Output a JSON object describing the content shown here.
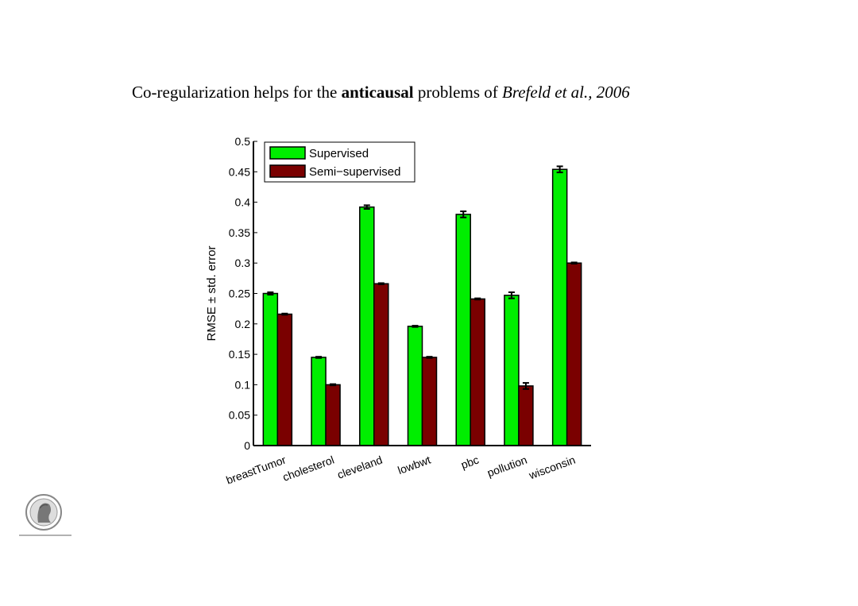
{
  "heading": {
    "part1": "Co-regularization helps for the ",
    "bold": "anticausal",
    "part2": " problems of ",
    "italic": "Brefeld et al., 2006"
  },
  "chart_data": {
    "type": "bar",
    "title": "",
    "xlabel": "",
    "ylabel": "RMSE ± std. error",
    "ylim": [
      0,
      0.5
    ],
    "yticks": [
      "0",
      "0.05",
      "0.1",
      "0.15",
      "0.2",
      "0.25",
      "0.3",
      "0.35",
      "0.4",
      "0.45",
      "0.5"
    ],
    "categories": [
      "breastTumor",
      "cholesterol",
      "cleveland",
      "lowbwt",
      "pbc",
      "pollution",
      "wisconsin"
    ],
    "series": [
      {
        "name": "Supervised",
        "color": "#00ee00",
        "values": [
          0.25,
          0.145,
          0.392,
          0.196,
          0.38,
          0.247,
          0.454
        ],
        "errors": [
          0.002,
          0.001,
          0.003,
          0.001,
          0.005,
          0.005,
          0.005
        ]
      },
      {
        "name": "Semi−supervised",
        "color": "#7a0000",
        "values": [
          0.216,
          0.1,
          0.266,
          0.145,
          0.241,
          0.098,
          0.3
        ],
        "errors": [
          0.001,
          0.001,
          0.001,
          0.001,
          0.001,
          0.005,
          0.001
        ]
      }
    ],
    "legend_position": "top-left",
    "grid": false
  }
}
